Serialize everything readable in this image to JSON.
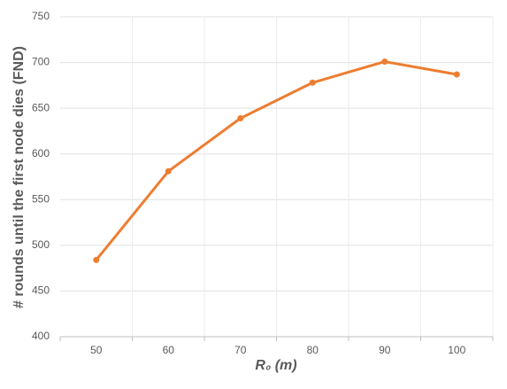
{
  "chart_data": {
    "type": "line",
    "x_label": "R₀ (m)",
    "y_label": "# rounds until the first node dies (FND)",
    "categories": [
      "50",
      "60",
      "70",
      "80",
      "90",
      "100"
    ],
    "series": [
      {
        "name": "FND",
        "color": "#ed7d31",
        "values": [
          484,
          581,
          639,
          678,
          701,
          687
        ]
      }
    ],
    "ylim": [
      400,
      750
    ],
    "yticks": [
      400,
      450,
      500,
      550,
      600,
      650,
      700,
      750
    ],
    "grid": true
  }
}
